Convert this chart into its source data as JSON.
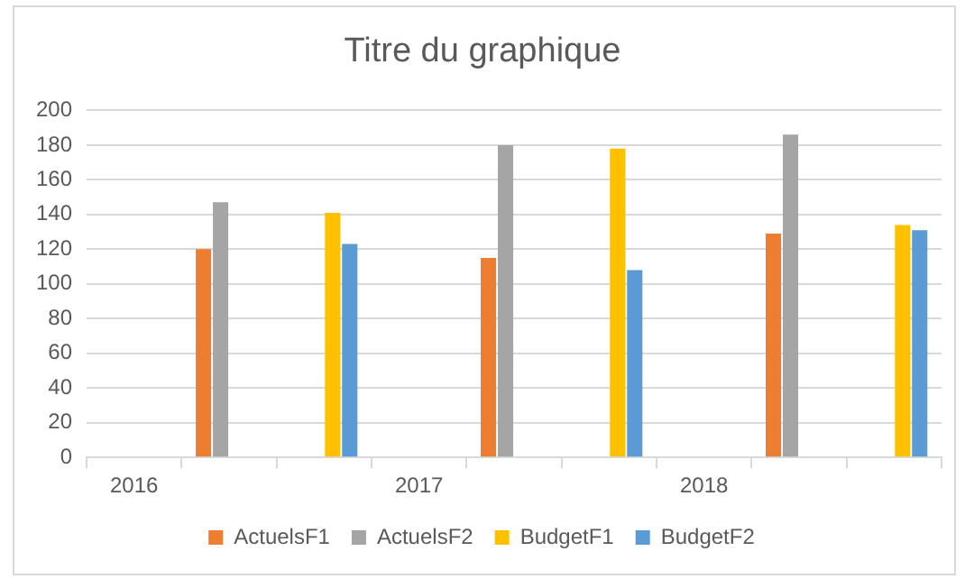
{
  "chart_data": {
    "type": "bar",
    "title": "Titre du graphique",
    "categories": [
      "2016",
      null,
      null,
      "2017",
      null,
      null,
      "2018",
      null,
      null
    ],
    "series": [
      {
        "name": "ActuelsF1",
        "color": "#ed7d31",
        "values": [
          null,
          120,
          null,
          null,
          115,
          null,
          null,
          129,
          null
        ]
      },
      {
        "name": "ActuelsF2",
        "color": "#a5a5a5",
        "values": [
          null,
          147,
          null,
          null,
          180,
          null,
          null,
          186,
          null
        ]
      },
      {
        "name": "BudgetF1",
        "color": "#ffc000",
        "values": [
          null,
          null,
          141,
          null,
          null,
          178,
          null,
          null,
          134
        ]
      },
      {
        "name": "BudgetF2",
        "color": "#5b9bd5",
        "values": [
          null,
          null,
          123,
          null,
          null,
          108,
          null,
          null,
          131
        ]
      }
    ],
    "ylim": [
      0,
      200
    ],
    "yticks": [
      0,
      20,
      40,
      60,
      80,
      100,
      120,
      140,
      160,
      180,
      200
    ],
    "grid": "y",
    "legend": "bottom"
  }
}
